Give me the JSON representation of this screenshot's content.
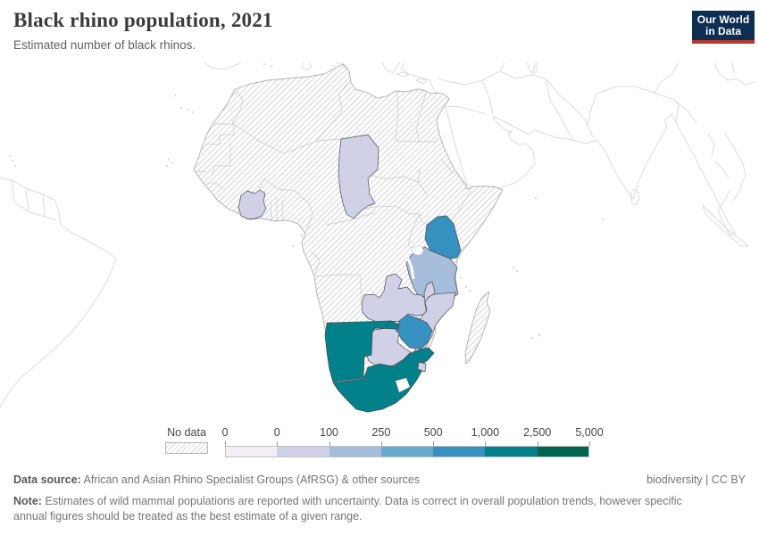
{
  "header": {
    "title": "Black rhino population, 2021",
    "subtitle": "Estimated number of black rhinos.",
    "logo_line1": "Our World",
    "logo_line2": "in Data",
    "logo_bg": "#0d2d52",
    "logo_bar": "#b63a2e"
  },
  "legend": {
    "no_data_label": "No data",
    "tick_labels": [
      "0",
      "0",
      "100",
      "250",
      "500",
      "1,000",
      "2,500",
      "5,000"
    ],
    "bin_colors": [
      "#f1eef6",
      "#d0d1e6",
      "#a6bddb",
      "#67a9cf",
      "#3690c0",
      "#02818a",
      "#016450"
    ]
  },
  "footer": {
    "data_source_label": "Data source:",
    "data_source_value": "African and Asian Rhino Specialist Groups (AfRSG) & other sources",
    "license": "biodiversity | CC BY",
    "note_label": "Note:",
    "note_value": "Estimates of wild mammal populations are reported with uncertainty. Data is correct in overall population trends, however specific annual figures should be treated as the best estimate of a given range."
  },
  "chart_data": {
    "type": "choropleth",
    "title": "Black rhino population, 2021",
    "subtitle": "Estimated number of black rhinos.",
    "region_shown": "Africa",
    "legend_bins": [
      {
        "label": "No data",
        "fill": "hatch"
      },
      {
        "range": "0",
        "color": "#f1eef6"
      },
      {
        "range": "0–100",
        "color": "#d0d1e6"
      },
      {
        "range": "100–250",
        "color": "#a6bddb"
      },
      {
        "range": "250–500",
        "color": "#67a9cf"
      },
      {
        "range": "500–1,000",
        "color": "#3690c0"
      },
      {
        "range": "1,000–2,500",
        "color": "#02818a"
      },
      {
        "range": "2,500–5,000",
        "color": "#016450"
      }
    ],
    "countries": [
      {
        "id": "chad",
        "name": "Chad",
        "bin": "0–100",
        "color": "#d0d1e6"
      },
      {
        "id": "cote-divoire",
        "name": "Cote d'Ivoire",
        "bin": "0–100",
        "color": "#d0d1e6"
      },
      {
        "id": "kenya",
        "name": "Kenya",
        "bin": "500–1,000",
        "color": "#3690c0"
      },
      {
        "id": "tanzania",
        "name": "Tanzania",
        "bin": "100–250",
        "color": "#a6bddb"
      },
      {
        "id": "zambia",
        "name": "Zambia",
        "bin": "0–100",
        "color": "#d0d1e6"
      },
      {
        "id": "malawi",
        "name": "Malawi",
        "bin": "0–100",
        "color": "#d0d1e6"
      },
      {
        "id": "mozambique",
        "name": "Mozambique",
        "bin": "0–100",
        "color": "#d0d1e6"
      },
      {
        "id": "zimbabwe",
        "name": "Zimbabwe",
        "bin": "500–1,000",
        "color": "#3690c0"
      },
      {
        "id": "botswana",
        "name": "Botswana",
        "bin": "0–100",
        "color": "#d0d1e6"
      },
      {
        "id": "namibia",
        "name": "Namibia",
        "bin": "1,000–2,500",
        "color": "#02818a"
      },
      {
        "id": "south-africa",
        "name": "South Africa",
        "bin": "1,000–2,500",
        "color": "#02818a"
      },
      {
        "id": "eswatini",
        "name": "Eswatini",
        "bin": "0–100",
        "color": "#d0d1e6"
      }
    ],
    "no_data_regions": [
      "Rest of Africa",
      "Madagascar",
      "Somalia",
      "Western Sahara"
    ]
  }
}
